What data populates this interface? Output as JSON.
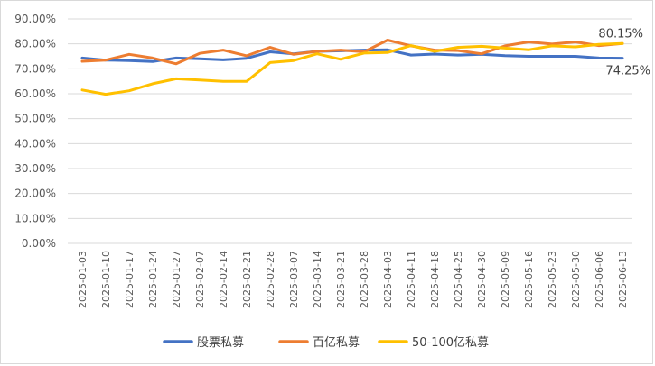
{
  "chart_data": {
    "type": "line",
    "title": "",
    "xlabel": "",
    "ylabel": "",
    "ylim": [
      0,
      90
    ],
    "y_tick_labels": [
      "0.00%",
      "10.00%",
      "20.00%",
      "30.00%",
      "40.00%",
      "50.00%",
      "60.00%",
      "70.00%",
      "80.00%",
      "90.00%"
    ],
    "y_ticks": [
      0,
      10,
      20,
      30,
      40,
      50,
      60,
      70,
      80,
      90
    ],
    "grid": "horizontal",
    "legend": "bottom",
    "categories": [
      "2025-01-03",
      "2025-01-10",
      "2025-01-17",
      "2025-01-24",
      "2025-01-27",
      "2025-02-07",
      "2025-02-14",
      "2025-02-21",
      "2025-02-28",
      "2025-03-07",
      "2025-03-14",
      "2025-03-21",
      "2025-03-28",
      "2025-04-03",
      "2025-04-11",
      "2025-04-18",
      "2025-04-25",
      "2025-04-30",
      "2025-05-09",
      "2025-05-16",
      "2025-05-23",
      "2025-05-30",
      "2025-06-06",
      "2025-06-13"
    ],
    "series": [
      {
        "name": "股票私募",
        "color": "#4472C4",
        "values": [
          74.3,
          73.5,
          73.3,
          72.9,
          74.3,
          74.0,
          73.6,
          74.2,
          76.8,
          76.0,
          77.0,
          77.2,
          77.5,
          77.6,
          75.5,
          75.9,
          75.5,
          75.8,
          75.3,
          75.0,
          75.0,
          75.0,
          74.3,
          74.25
        ]
      },
      {
        "name": "百亿私募",
        "color": "#ED7D31",
        "values": [
          73.0,
          73.5,
          75.8,
          74.3,
          72.0,
          76.2,
          77.5,
          75.2,
          78.6,
          75.8,
          77.0,
          77.5,
          76.8,
          81.5,
          79.2,
          77.5,
          77.3,
          76.0,
          79.2,
          80.8,
          79.9,
          80.8,
          79.3,
          80.15
        ]
      },
      {
        "name": "50-100亿私募",
        "color": "#FFC000",
        "values": [
          61.5,
          59.8,
          61.2,
          64.0,
          66.0,
          65.5,
          65.0,
          65.0,
          72.5,
          73.3,
          76.0,
          73.8,
          76.3,
          76.5,
          79.3,
          77.0,
          78.6,
          79.0,
          78.3,
          77.6,
          79.2,
          78.8,
          79.8,
          80.15
        ]
      }
    ],
    "end_labels": [
      {
        "text": "80.15%",
        "series": "百亿私募"
      },
      {
        "text": "74.25%",
        "series": "股票私募"
      }
    ]
  }
}
